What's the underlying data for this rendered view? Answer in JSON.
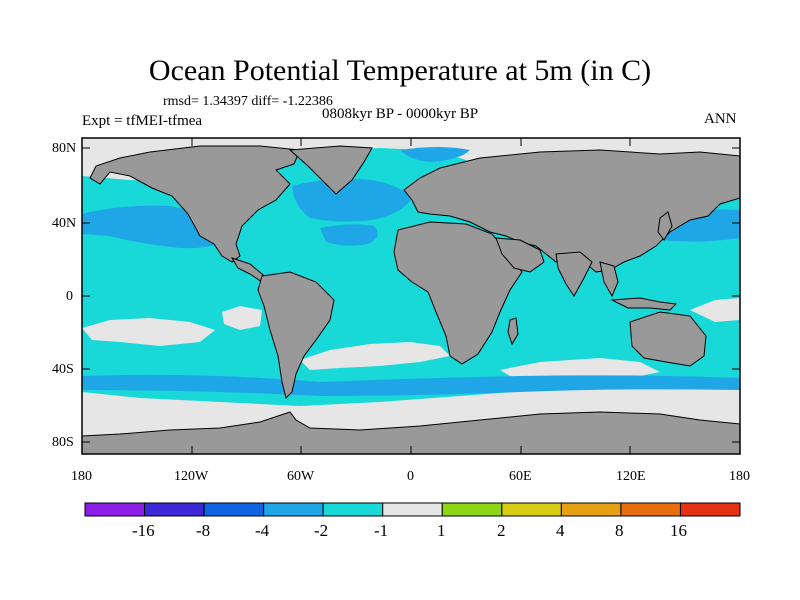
{
  "title": "Ocean Potential Temperature at 5m (in C)",
  "stats_line": "rmsd= 1.34397 diff= -1.22386",
  "experiment": "Expt = tfMEI-tfmea",
  "period": "0808kyr BP - 0000kyr BP",
  "season": "ANN",
  "lat_labels": [
    "80N",
    "40N",
    "0",
    "40S",
    "80S"
  ],
  "lon_labels": [
    "180",
    "120W",
    "60W",
    "0",
    "60E",
    "120E",
    "180"
  ],
  "colorbar": {
    "colors": [
      "#8c1ee8",
      "#3b28d6",
      "#0f64e0",
      "#1ea6e6",
      "#18d8d8",
      "#e6e6e6",
      "#8cd614",
      "#d6cc14",
      "#e6a014",
      "#e66e0f",
      "#e63214"
    ],
    "labels": [
      "-16",
      "-8",
      "-4",
      "-2",
      "-1",
      "1",
      "2",
      "4",
      "8",
      "16"
    ]
  },
  "colors": {
    "land": "#999999",
    "ocean_main": "#18d8d8",
    "ocean_strong": "#1ea6e6",
    "near_zero": "#e6e6e6"
  }
}
